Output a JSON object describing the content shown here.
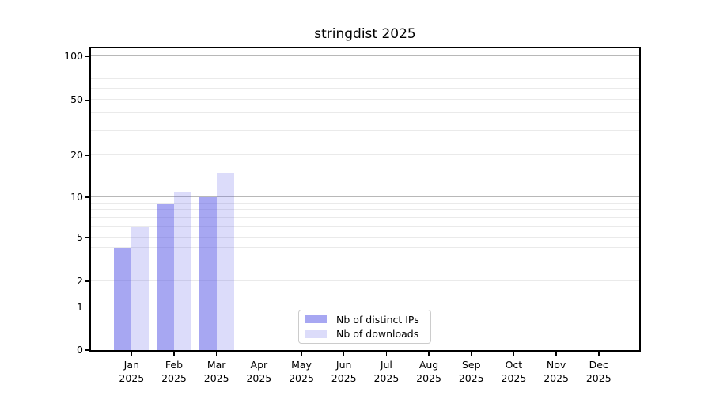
{
  "title": "stringdist 2025",
  "chart_data": {
    "type": "bar",
    "title": "stringdist 2025",
    "xlabel": "",
    "ylabel": "",
    "categories": [
      "Jan 2025",
      "Feb 2025",
      "Mar 2025",
      "Apr 2025",
      "May 2025",
      "Jun 2025",
      "Jul 2025",
      "Aug 2025",
      "Sep 2025",
      "Oct 2025",
      "Nov 2025",
      "Dec 2025"
    ],
    "series": [
      {
        "name": "Nb of distinct IPs",
        "color": "rgba(80,80,230,0.50)",
        "values": [
          4,
          9,
          10,
          null,
          null,
          null,
          null,
          null,
          null,
          null,
          null,
          null
        ]
      },
      {
        "name": "Nb of downloads",
        "color": "rgba(80,80,230,0.20)",
        "values": [
          6,
          11,
          15,
          null,
          null,
          null,
          null,
          null,
          null,
          null,
          null,
          null
        ]
      }
    ],
    "y_axis": {
      "scale": "symlog",
      "labeled_ticks": [
        0,
        1,
        2,
        5,
        10,
        20,
        50,
        100
      ],
      "major_gridlines": [
        1,
        10,
        100
      ],
      "minor_gridlines": [
        2,
        3,
        4,
        5,
        6,
        7,
        8,
        9,
        20,
        30,
        40,
        50,
        60,
        70,
        80,
        90
      ],
      "tick_fractions": [
        [
          0,
          0.0
        ],
        [
          1,
          0.1424
        ],
        [
          2,
          0.2283
        ],
        [
          5,
          0.374
        ],
        [
          10,
          0.5068
        ],
        [
          20,
          0.6447
        ],
        [
          50,
          0.8287
        ],
        [
          100,
          0.9727
        ]
      ]
    },
    "legend": {
      "items": [
        "Nb of distinct IPs",
        "Nb of downloads"
      ],
      "position": "inside-bottom-center"
    },
    "grid": true,
    "colors": {
      "major_grid": "#b8b8b8",
      "minor_grid": "#eaeaea",
      "spine": "#000000"
    }
  }
}
